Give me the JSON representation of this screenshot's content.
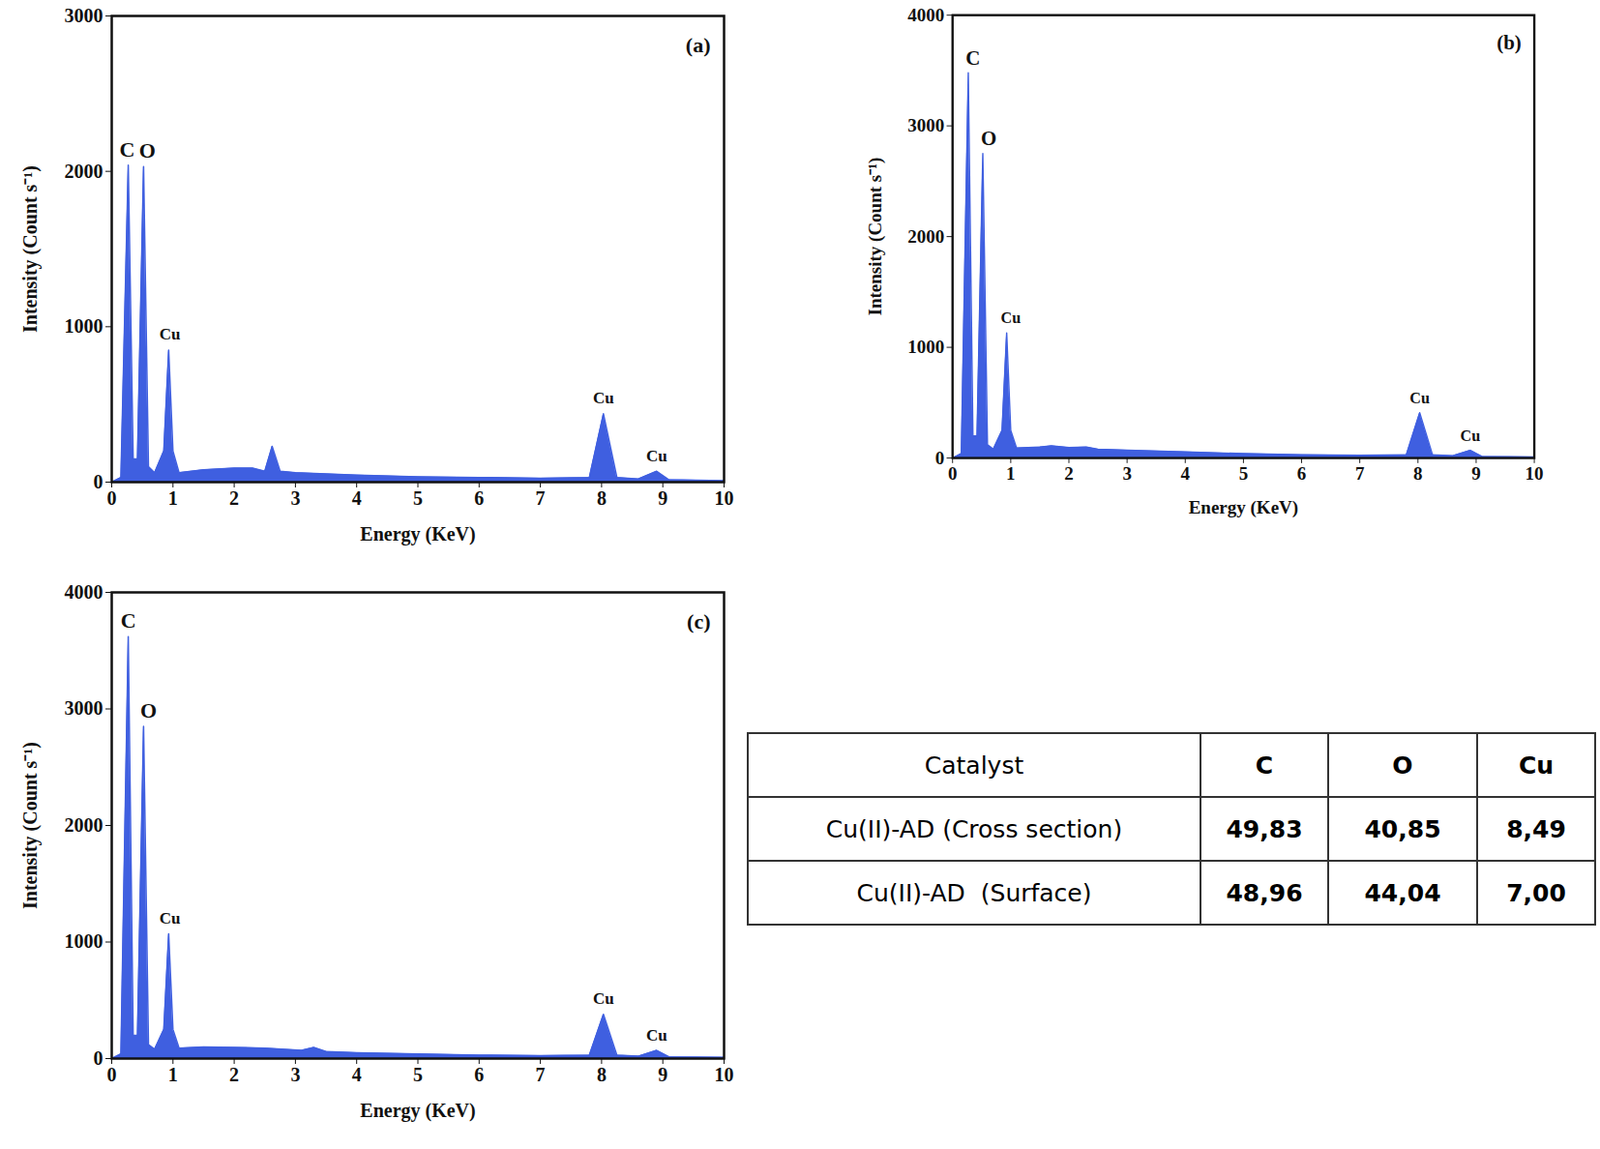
{
  "chart_data": [
    {
      "type": "area",
      "title": "(a)",
      "x_label": "Energy (KeV)",
      "y_label": "Intensity (Count s⁻¹)",
      "color": "#3f5fe0",
      "x": [
        0,
        0.15,
        0.27,
        0.35,
        0.42,
        0.52,
        0.6,
        0.7,
        0.85,
        0.93,
        1.0,
        1.1,
        1.5,
        2.0,
        2.3,
        2.5,
        2.62,
        2.75,
        3,
        4,
        5,
        6,
        7,
        7.8,
        8.03,
        8.25,
        8.6,
        8.9,
        9.1,
        10
      ],
      "values": [
        0,
        30,
        2040,
        150,
        150,
        2030,
        100,
        60,
        200,
        850,
        200,
        60,
        80,
        90,
        90,
        70,
        230,
        70,
        60,
        45,
        35,
        30,
        25,
        30,
        440,
        30,
        20,
        70,
        15,
        10
      ],
      "xlim": [
        0,
        10
      ],
      "xticks": [
        0,
        1,
        2,
        3,
        4,
        5,
        6,
        7,
        8,
        9,
        10
      ],
      "ylim": [
        0,
        3000
      ],
      "yticks": [
        0,
        1000,
        2000,
        3000
      ],
      "annotations": [
        {
          "text": "C",
          "x": 0.25,
          "y": 2040
        },
        {
          "text": "O",
          "x": 0.58,
          "y": 2030
        },
        {
          "text": "Cu",
          "x": 0.95,
          "y": 850
        },
        {
          "text": "Cu",
          "x": 8.03,
          "y": 440
        },
        {
          "text": "Cu",
          "x": 8.9,
          "y": 70
        }
      ]
    },
    {
      "type": "area",
      "title": "(b)",
      "x_label": "Energy (KeV)",
      "y_label": "Intensity (Count s⁻¹)",
      "color": "#3f5fe0",
      "x": [
        0,
        0.15,
        0.27,
        0.35,
        0.42,
        0.52,
        0.6,
        0.7,
        0.85,
        0.93,
        1.0,
        1.1,
        1.5,
        1.7,
        2.0,
        2.3,
        2.5,
        3,
        4,
        5,
        6,
        7,
        7.8,
        8.03,
        8.25,
        8.6,
        8.9,
        9.1,
        10
      ],
      "values": [
        0,
        40,
        3480,
        200,
        200,
        2750,
        120,
        80,
        250,
        1130,
        250,
        90,
        100,
        110,
        95,
        100,
        80,
        70,
        55,
        40,
        30,
        25,
        30,
        410,
        30,
        20,
        70,
        15,
        10
      ],
      "xlim": [
        0,
        10
      ],
      "xticks": [
        0,
        1,
        2,
        3,
        4,
        5,
        6,
        7,
        8,
        9,
        10
      ],
      "ylim": [
        0,
        4000
      ],
      "yticks": [
        0,
        1000,
        2000,
        3000,
        4000
      ],
      "annotations": [
        {
          "text": "C",
          "x": 0.35,
          "y": 3480
        },
        {
          "text": "O",
          "x": 0.62,
          "y": 2750
        },
        {
          "text": "Cu",
          "x": 1.0,
          "y": 1130
        },
        {
          "text": "Cu",
          "x": 8.03,
          "y": 410
        },
        {
          "text": "Cu",
          "x": 8.9,
          "y": 70
        }
      ]
    },
    {
      "type": "area",
      "title": "(c)",
      "x_label": "Energy (KeV)",
      "y_label": "Intensity (Count s⁻¹)",
      "color": "#3f5fe0",
      "x": [
        0,
        0.15,
        0.27,
        0.35,
        0.42,
        0.52,
        0.6,
        0.7,
        0.85,
        0.93,
        1.0,
        1.1,
        1.5,
        2.0,
        2.5,
        3.1,
        3.3,
        3.5,
        4,
        5,
        6,
        7,
        7.8,
        8.03,
        8.25,
        8.6,
        8.9,
        9.1,
        10
      ],
      "values": [
        0,
        40,
        3620,
        200,
        200,
        2850,
        120,
        80,
        250,
        1070,
        250,
        90,
        100,
        95,
        90,
        70,
        95,
        60,
        50,
        40,
        30,
        25,
        30,
        380,
        30,
        20,
        70,
        15,
        10
      ],
      "xlim": [
        0,
        10
      ],
      "xticks": [
        0,
        1,
        2,
        3,
        4,
        5,
        6,
        7,
        8,
        9,
        10
      ],
      "ylim": [
        0,
        4000
      ],
      "yticks": [
        0,
        1000,
        2000,
        3000,
        4000
      ],
      "annotations": [
        {
          "text": "C",
          "x": 0.27,
          "y": 3620
        },
        {
          "text": "O",
          "x": 0.6,
          "y": 2850
        },
        {
          "text": "Cu",
          "x": 0.95,
          "y": 1070
        },
        {
          "text": "Cu",
          "x": 8.03,
          "y": 380
        },
        {
          "text": "Cu",
          "x": 8.9,
          "y": 70
        }
      ]
    }
  ],
  "table": {
    "header": [
      "Catalyst",
      "C",
      "O",
      "Cu"
    ],
    "rows": [
      [
        "Cu(II)-AD (Cross section)",
        "49,83",
        "40,85",
        "8,49"
      ],
      [
        "Cu(II)-AD  (Surface)",
        "48,96",
        "44,04",
        "7,00"
      ]
    ]
  }
}
